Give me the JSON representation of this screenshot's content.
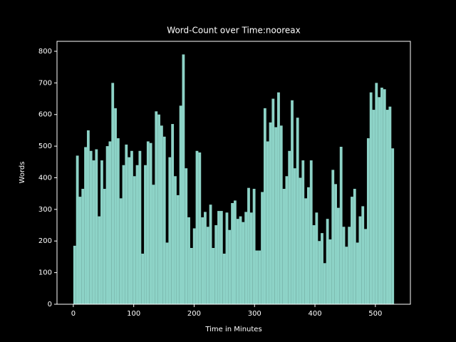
{
  "chart_data": {
    "type": "histogram",
    "title": "Word-Count over Time:nooreax",
    "x_label": "Time in Minutes",
    "y_label": "Words",
    "color": "#8dd3c7",
    "bins": [
      0,
      4.5,
      9,
      13.5,
      18,
      22.5,
      27,
      31.5,
      36,
      40.5,
      45,
      49.5,
      54,
      58.5,
      63,
      67.5,
      72,
      76.5,
      81,
      85.5,
      90,
      94.5,
      99,
      103.5,
      108,
      112.5,
      117,
      121.5,
      126,
      130.5,
      135,
      139.5,
      144,
      148.5,
      153,
      157.5,
      162,
      166.5,
      171,
      175.5,
      180,
      184.5,
      189,
      193.5,
      198,
      202.5,
      207,
      211.5,
      216,
      220.5,
      225,
      229.5,
      234,
      238.5,
      243,
      247.5,
      252,
      256.5,
      261,
      265.5,
      270,
      274.5,
      279,
      283.5,
      288,
      292.5,
      297,
      301.5,
      306,
      310.5,
      315,
      319.5,
      324,
      328.5,
      333,
      337.5,
      342,
      346.5,
      351,
      355.5,
      360,
      364.5,
      369,
      373.5,
      378,
      382.5,
      387,
      391.5,
      396,
      400.5,
      405,
      409.5,
      414,
      418.5,
      423,
      427.5,
      432,
      436.5,
      441,
      445.5,
      450,
      454.5,
      459,
      463.5,
      468,
      472.5,
      477,
      481.5,
      486,
      490.5,
      495,
      499.5,
      504,
      508.5,
      513,
      517.5,
      522,
      526.5,
      531
    ],
    "values": [
      185,
      470,
      340,
      365,
      497,
      550,
      485,
      455,
      490,
      278,
      455,
      365,
      500,
      515,
      700,
      620,
      525,
      335,
      440,
      505,
      465,
      485,
      405,
      440,
      485,
      160,
      440,
      515,
      510,
      378,
      610,
      600,
      565,
      530,
      195,
      465,
      570,
      405,
      345,
      628,
      790,
      430,
      275,
      178,
      240,
      485,
      480,
      275,
      292,
      245,
      315,
      178,
      250,
      295,
      295,
      160,
      290,
      235,
      320,
      328,
      270,
      278,
      260,
      292,
      368,
      290,
      365,
      170,
      170,
      355,
      620,
      515,
      575,
      650,
      560,
      670,
      565,
      365,
      405,
      485,
      645,
      430,
      590,
      400,
      455,
      335,
      370,
      455,
      250,
      290,
      200,
      225,
      130,
      270,
      205,
      425,
      380,
      305,
      498,
      245,
      182,
      245,
      340,
      365,
      195,
      278,
      310,
      238,
      525,
      670,
      615,
      700,
      655,
      685,
      680,
      615,
      625,
      493
    ],
    "xlim": [
      -27,
      558
    ],
    "ylim": [
      0,
      831.5
    ],
    "xticks": [
      0,
      100,
      200,
      300,
      400,
      500
    ],
    "yticks": [
      0,
      100,
      200,
      300,
      400,
      500,
      600,
      700,
      800
    ]
  }
}
